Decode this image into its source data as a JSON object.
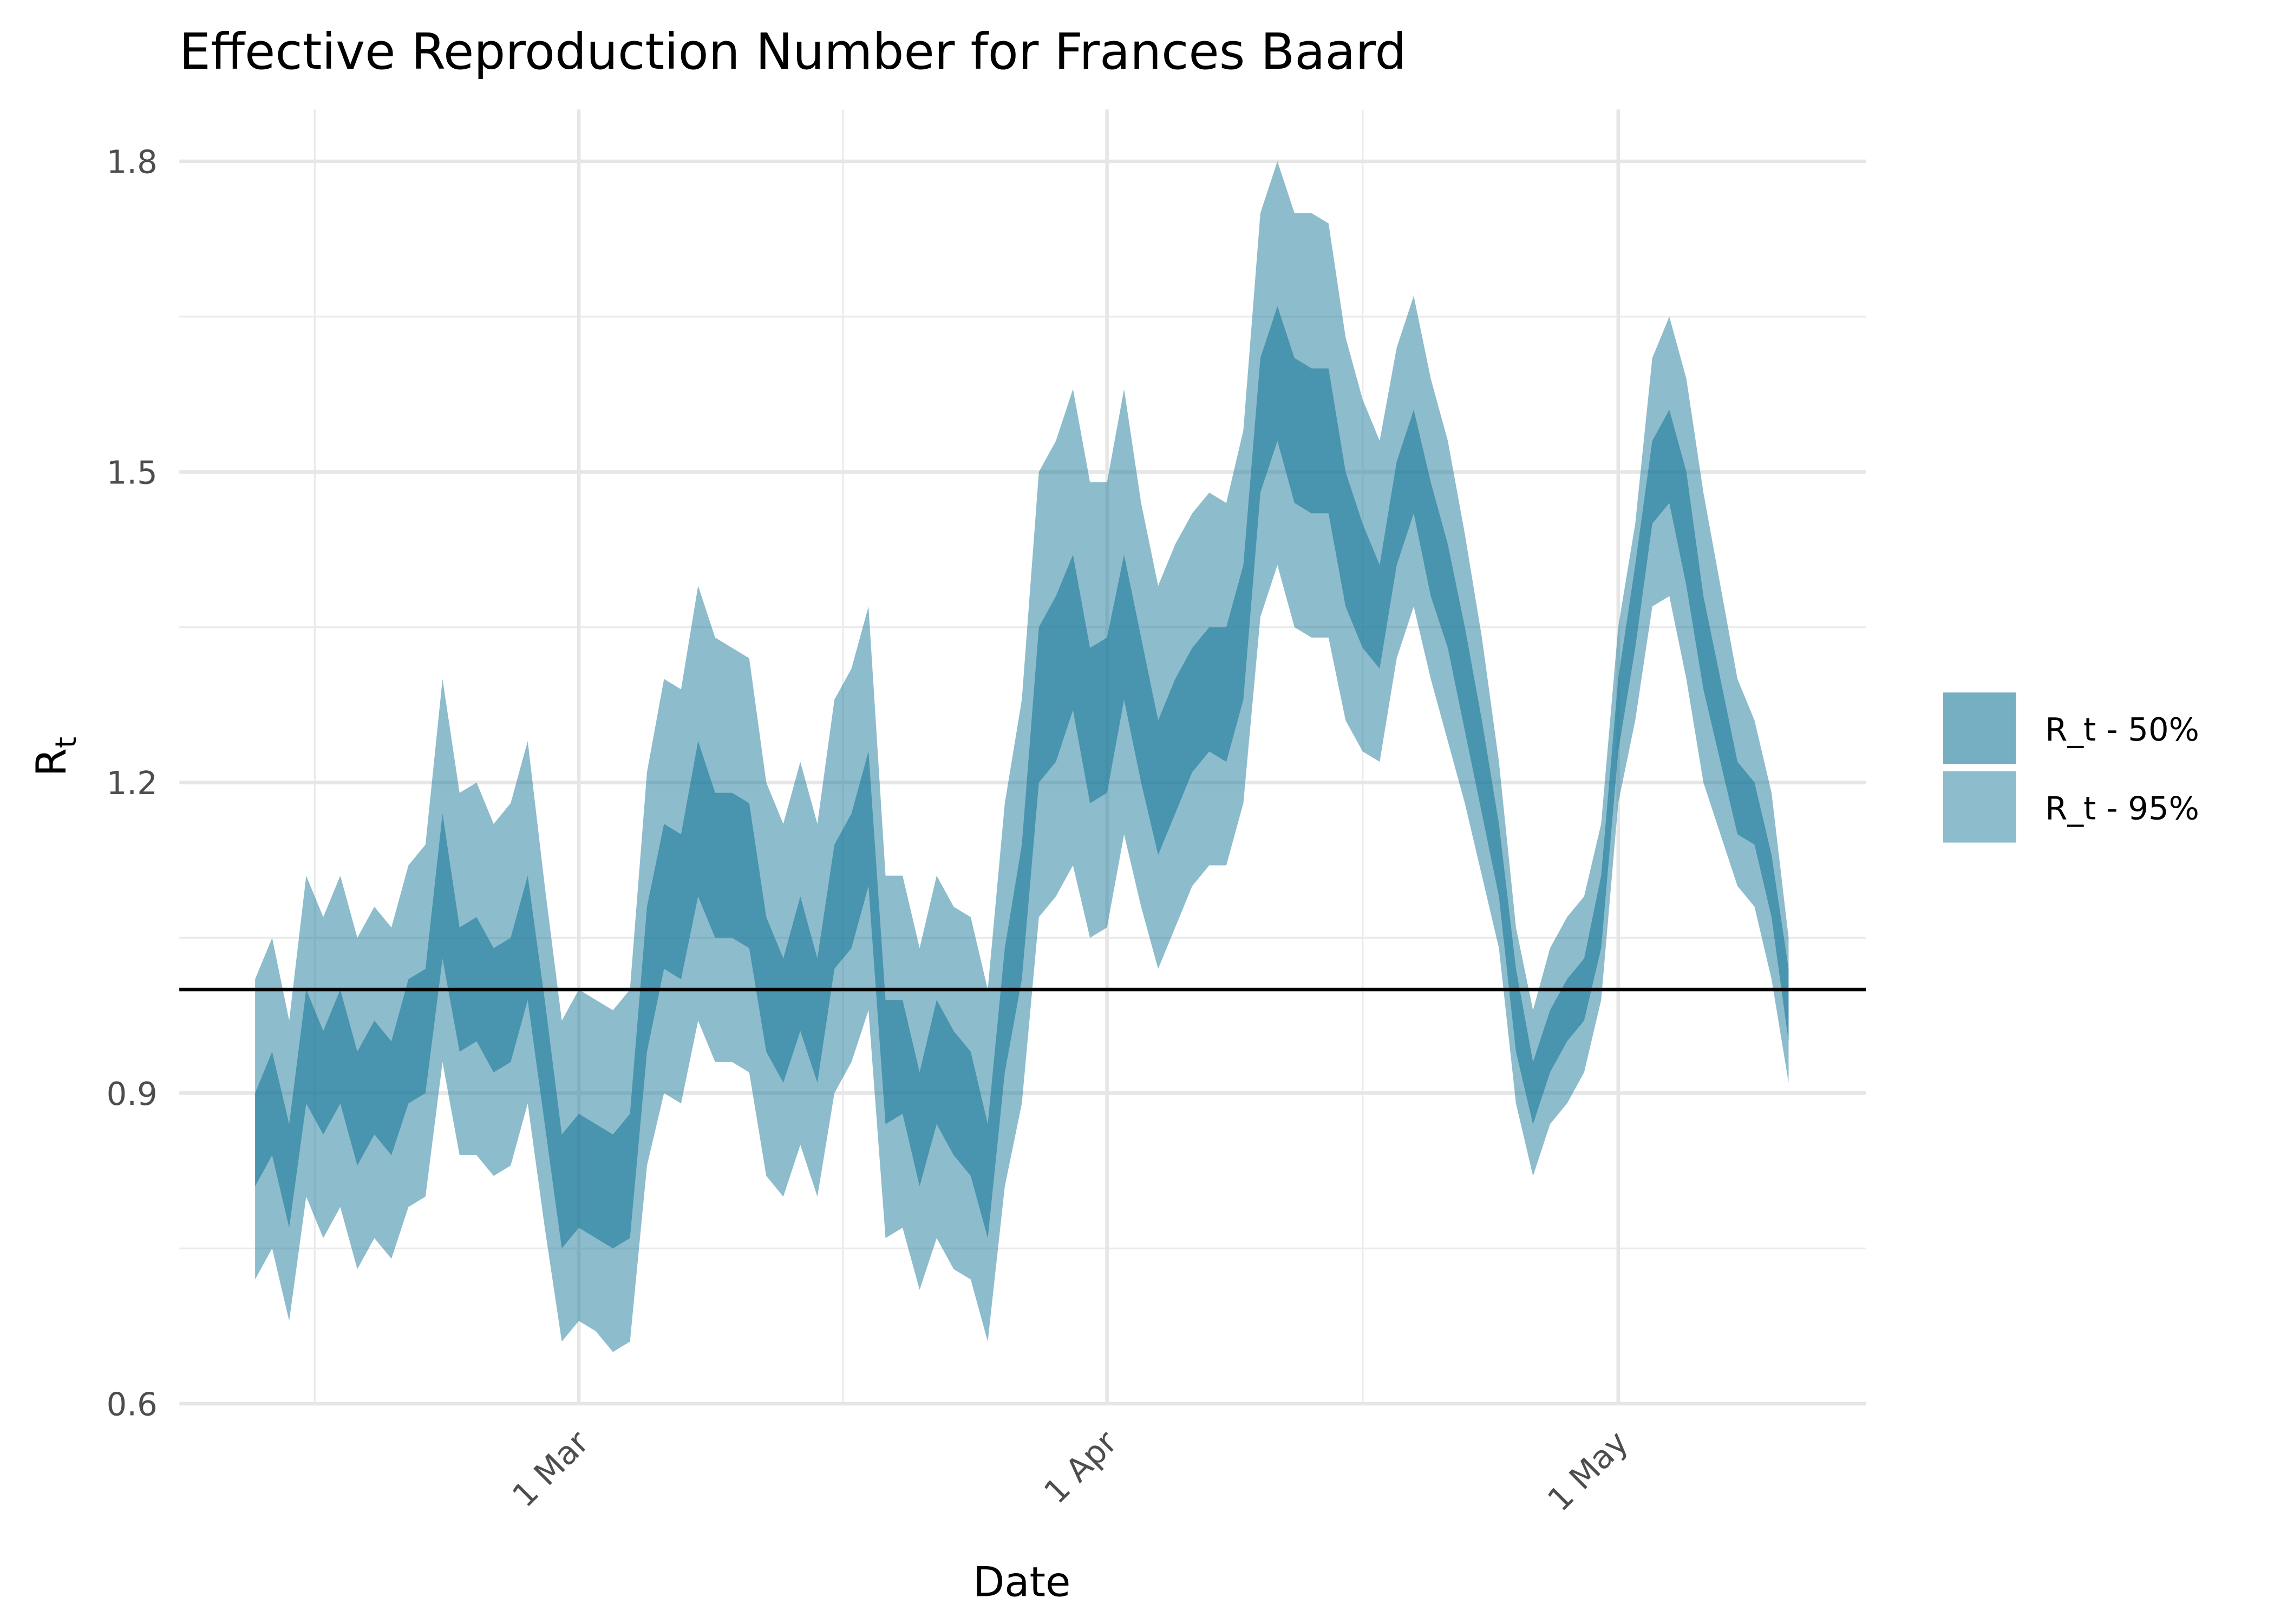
{
  "chart_data": {
    "type": "ribbon",
    "title": "Effective Reproduction Number for Frances Baard",
    "xlabel": "Date",
    "ylabel": {
      "text": "R",
      "subscript": "t"
    },
    "x": [
      "11 Feb",
      "12 Feb",
      "13 Feb",
      "14 Feb",
      "15 Feb",
      "16 Feb",
      "17 Feb",
      "18 Feb",
      "19 Feb",
      "20 Feb",
      "21 Feb",
      "22 Feb",
      "23 Feb",
      "24 Feb",
      "25 Feb",
      "26 Feb",
      "27 Feb",
      "28 Feb",
      "29 Feb",
      "1 Mar",
      "2 Mar",
      "3 Mar",
      "4 Mar",
      "5 Mar",
      "6 Mar",
      "7 Mar",
      "8 Mar",
      "9 Mar",
      "10 Mar",
      "11 Mar",
      "12 Mar",
      "13 Mar",
      "14 Mar",
      "15 Mar",
      "16 Mar",
      "17 Mar",
      "18 Mar",
      "19 Mar",
      "20 Mar",
      "21 Mar",
      "22 Mar",
      "23 Mar",
      "24 Mar",
      "25 Mar",
      "26 Mar",
      "27 Mar",
      "28 Mar",
      "29 Mar",
      "30 Mar",
      "31 Mar",
      "1 Apr",
      "2 Apr",
      "3 Apr",
      "4 Apr",
      "5 Apr",
      "6 Apr",
      "7 Apr",
      "8 Apr",
      "9 Apr",
      "10 Apr",
      "11 Apr",
      "12 Apr",
      "13 Apr",
      "14 Apr",
      "15 Apr",
      "16 Apr",
      "17 Apr",
      "18 Apr",
      "19 Apr",
      "20 Apr",
      "21 Apr",
      "22 Apr",
      "23 Apr",
      "24 Apr",
      "25 Apr",
      "26 Apr",
      "27 Apr",
      "28 Apr",
      "29 Apr",
      "30 Apr",
      "1 May",
      "2 May",
      "3 May",
      "4 May",
      "5 May",
      "6 May",
      "7 May",
      "8 May",
      "9 May",
      "10 May",
      "11 May"
    ],
    "xticks": [
      "1 Mar",
      "1 Apr",
      "1 May"
    ],
    "ylim": [
      0.6,
      1.85
    ],
    "yticks": [
      0.6,
      0.9,
      1.2,
      1.5,
      1.8
    ],
    "grid": true,
    "hline": 1,
    "legend": "right",
    "series": [
      {
        "name": "R_t - 95%",
        "color": "#1c7a99",
        "alpha": 0.5,
        "lower": [
          0.72,
          0.75,
          0.68,
          0.8,
          0.76,
          0.79,
          0.73,
          0.76,
          0.74,
          0.79,
          0.8,
          0.93,
          0.84,
          0.84,
          0.82,
          0.83,
          0.89,
          0.77,
          0.66,
          0.68,
          0.67,
          0.65,
          0.66,
          0.83,
          0.9,
          0.89,
          0.97,
          0.93,
          0.93,
          0.92,
          0.82,
          0.8,
          0.85,
          0.8,
          0.9,
          0.93,
          0.98,
          0.76,
          0.77,
          0.71,
          0.76,
          0.73,
          0.72,
          0.66,
          0.81,
          0.89,
          1.07,
          1.09,
          1.12,
          1.05,
          1.06,
          1.15,
          1.08,
          1.02,
          1.06,
          1.1,
          1.12,
          1.12,
          1.18,
          1.36,
          1.41,
          1.35,
          1.34,
          1.34,
          1.26,
          1.23,
          1.22,
          1.32,
          1.37,
          1.3,
          1.24,
          1.18,
          1.11,
          1.04,
          0.89,
          0.82,
          0.87,
          0.89,
          0.92,
          0.99,
          1.18,
          1.26,
          1.37,
          1.38,
          1.3,
          1.2,
          1.15,
          1.1,
          1.08,
          1.01,
          0.91
        ],
        "upper": [
          1.01,
          1.05,
          0.97,
          1.11,
          1.07,
          1.11,
          1.05,
          1.08,
          1.06,
          1.12,
          1.14,
          1.3,
          1.19,
          1.2,
          1.16,
          1.18,
          1.24,
          1.1,
          0.97,
          1.0,
          0.99,
          0.98,
          1.0,
          1.21,
          1.3,
          1.29,
          1.39,
          1.34,
          1.33,
          1.32,
          1.2,
          1.16,
          1.22,
          1.16,
          1.28,
          1.31,
          1.37,
          1.11,
          1.11,
          1.04,
          1.11,
          1.08,
          1.07,
          1.0,
          1.18,
          1.28,
          1.5,
          1.53,
          1.58,
          1.49,
          1.49,
          1.58,
          1.47,
          1.39,
          1.43,
          1.46,
          1.48,
          1.47,
          1.54,
          1.75,
          1.8,
          1.75,
          1.75,
          1.74,
          1.63,
          1.57,
          1.53,
          1.62,
          1.67,
          1.59,
          1.53,
          1.44,
          1.34,
          1.22,
          1.06,
          0.98,
          1.04,
          1.07,
          1.09,
          1.16,
          1.35,
          1.45,
          1.61,
          1.65,
          1.59,
          1.48,
          1.39,
          1.3,
          1.26,
          1.19,
          1.05
        ]
      },
      {
        "name": "R_t - 50%",
        "color": "#1c7a99",
        "alpha": 0.6,
        "lower": [
          0.81,
          0.84,
          0.77,
          0.89,
          0.86,
          0.89,
          0.83,
          0.86,
          0.84,
          0.89,
          0.9,
          1.03,
          0.94,
          0.95,
          0.92,
          0.93,
          0.99,
          0.87,
          0.75,
          0.77,
          0.76,
          0.75,
          0.76,
          0.94,
          1.02,
          1.01,
          1.09,
          1.05,
          1.05,
          1.04,
          0.94,
          0.91,
          0.96,
          0.91,
          1.02,
          1.04,
          1.1,
          0.87,
          0.88,
          0.81,
          0.87,
          0.84,
          0.82,
          0.76,
          0.92,
          1.01,
          1.2,
          1.22,
          1.27,
          1.18,
          1.19,
          1.28,
          1.2,
          1.13,
          1.17,
          1.21,
          1.23,
          1.22,
          1.28,
          1.48,
          1.53,
          1.47,
          1.46,
          1.46,
          1.37,
          1.33,
          1.31,
          1.41,
          1.46,
          1.38,
          1.33,
          1.25,
          1.17,
          1.09,
          0.94,
          0.87,
          0.92,
          0.95,
          0.97,
          1.04,
          1.23,
          1.33,
          1.45,
          1.47,
          1.39,
          1.29,
          1.22,
          1.15,
          1.14,
          1.07,
          0.95
        ],
        "upper": [
          0.9,
          0.94,
          0.87,
          1.0,
          0.96,
          1.0,
          0.94,
          0.97,
          0.95,
          1.01,
          1.02,
          1.17,
          1.06,
          1.07,
          1.04,
          1.05,
          1.11,
          0.99,
          0.86,
          0.88,
          0.87,
          0.86,
          0.88,
          1.08,
          1.16,
          1.15,
          1.24,
          1.19,
          1.19,
          1.18,
          1.07,
          1.03,
          1.09,
          1.03,
          1.14,
          1.17,
          1.23,
          0.99,
          0.99,
          0.92,
          0.99,
          0.96,
          0.94,
          0.87,
          1.04,
          1.14,
          1.35,
          1.38,
          1.42,
          1.33,
          1.34,
          1.42,
          1.34,
          1.26,
          1.3,
          1.33,
          1.35,
          1.35,
          1.41,
          1.61,
          1.66,
          1.61,
          1.6,
          1.6,
          1.5,
          1.45,
          1.41,
          1.51,
          1.56,
          1.49,
          1.43,
          1.35,
          1.26,
          1.16,
          1.02,
          0.93,
          0.98,
          1.01,
          1.03,
          1.11,
          1.3,
          1.41,
          1.53,
          1.56,
          1.5,
          1.38,
          1.3,
          1.22,
          1.2,
          1.13,
          1.02
        ]
      }
    ]
  }
}
